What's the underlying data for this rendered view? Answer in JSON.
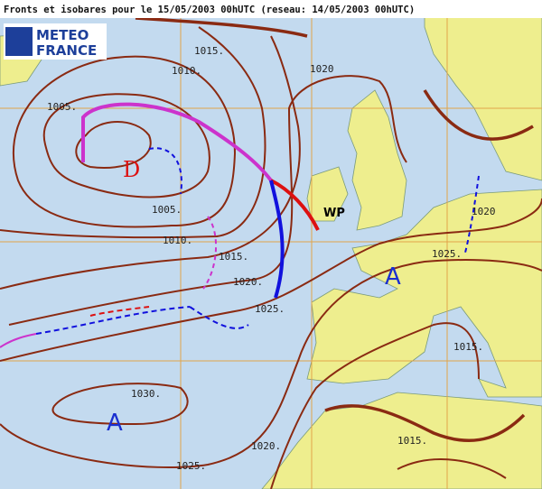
{
  "header": {
    "title": "Fronts et isobares pour le 15/05/2003 00hUTC (reseau: 14/05/2003 00hUTC)"
  },
  "logo": {
    "line1": "METEO",
    "line2": "FRANCE"
  },
  "isobar_labels": [
    "1010.",
    "1015.",
    "1005.",
    "1020",
    "1005.",
    "1010.",
    "1015.",
    "1020.",
    "1025.",
    "1020",
    "1025.",
    "1030.",
    "1025.",
    "1020.",
    "1015.",
    "1015."
  ],
  "centers": [
    {
      "label": "D"
    },
    {
      "label": "A"
    },
    {
      "label": "A"
    }
  ],
  "annotations": [
    {
      "label": "WP"
    }
  ]
}
